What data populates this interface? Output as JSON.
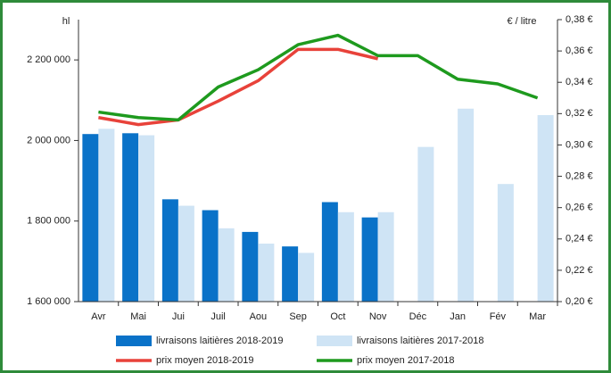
{
  "chart_data": {
    "type": "bar-line",
    "y_label": "hl",
    "y2_label": "€ / litre",
    "categories": [
      "Avr",
      "Mai",
      "Jui",
      "Juil",
      "Aou",
      "Sep",
      "Oct",
      "Nov",
      "Déc",
      "Jan",
      "Fév",
      "Mar"
    ],
    "series": [
      {
        "name": "livraisons laitières 2018-2019",
        "type": "bar",
        "color": "#0a72c8",
        "values": [
          2016000,
          2018000,
          1854000,
          1827000,
          1773000,
          1737000,
          1847000,
          1809000,
          null,
          null,
          null,
          null
        ]
      },
      {
        "name": "livraisons laitières 2017-2018",
        "type": "bar",
        "color": "#cfe4f5",
        "values": [
          2029000,
          2013000,
          1838000,
          1782000,
          1744000,
          1721000,
          1822000,
          1822000,
          1984000,
          2079000,
          1892000,
          2063000
        ]
      },
      {
        "name": "prix moyen 2018-2019",
        "type": "line",
        "axis": "y2",
        "color": "#e8423a",
        "values": [
          0.3175,
          0.313,
          0.316,
          0.328,
          0.341,
          0.361,
          0.361,
          0.355,
          null,
          null,
          null,
          null
        ]
      },
      {
        "name": "prix moyen 2017-2018",
        "type": "line",
        "axis": "y2",
        "color": "#1e9a1e",
        "values": [
          0.321,
          0.3175,
          0.316,
          0.337,
          0.348,
          0.364,
          0.37,
          0.357,
          0.357,
          0.342,
          0.339,
          0.33
        ]
      }
    ],
    "ylim": [
      1600000,
      2300000
    ],
    "yticks": [
      {
        "value": 1600000,
        "label": "1 600 000"
      },
      {
        "value": 1800000,
        "label": "1 800 000"
      },
      {
        "value": 2000000,
        "label": "2 000 000"
      },
      {
        "value": 2200000,
        "label": "2 200 000"
      }
    ],
    "y2lim": [
      0.2,
      0.38
    ],
    "y2ticks": [
      {
        "value": 0.2,
        "label": "0,20 €"
      },
      {
        "value": 0.22,
        "label": "0,22 €"
      },
      {
        "value": 0.24,
        "label": "0,24 €"
      },
      {
        "value": 0.26,
        "label": "0,26 €"
      },
      {
        "value": 0.28,
        "label": "0,28 €"
      },
      {
        "value": 0.3,
        "label": "0,30 €"
      },
      {
        "value": 0.32,
        "label": "0,32 €"
      },
      {
        "value": 0.34,
        "label": "0,34 €"
      },
      {
        "value": 0.36,
        "label": "0,36 €"
      },
      {
        "value": 0.38,
        "label": "0,38 €"
      }
    ],
    "grid": false
  }
}
